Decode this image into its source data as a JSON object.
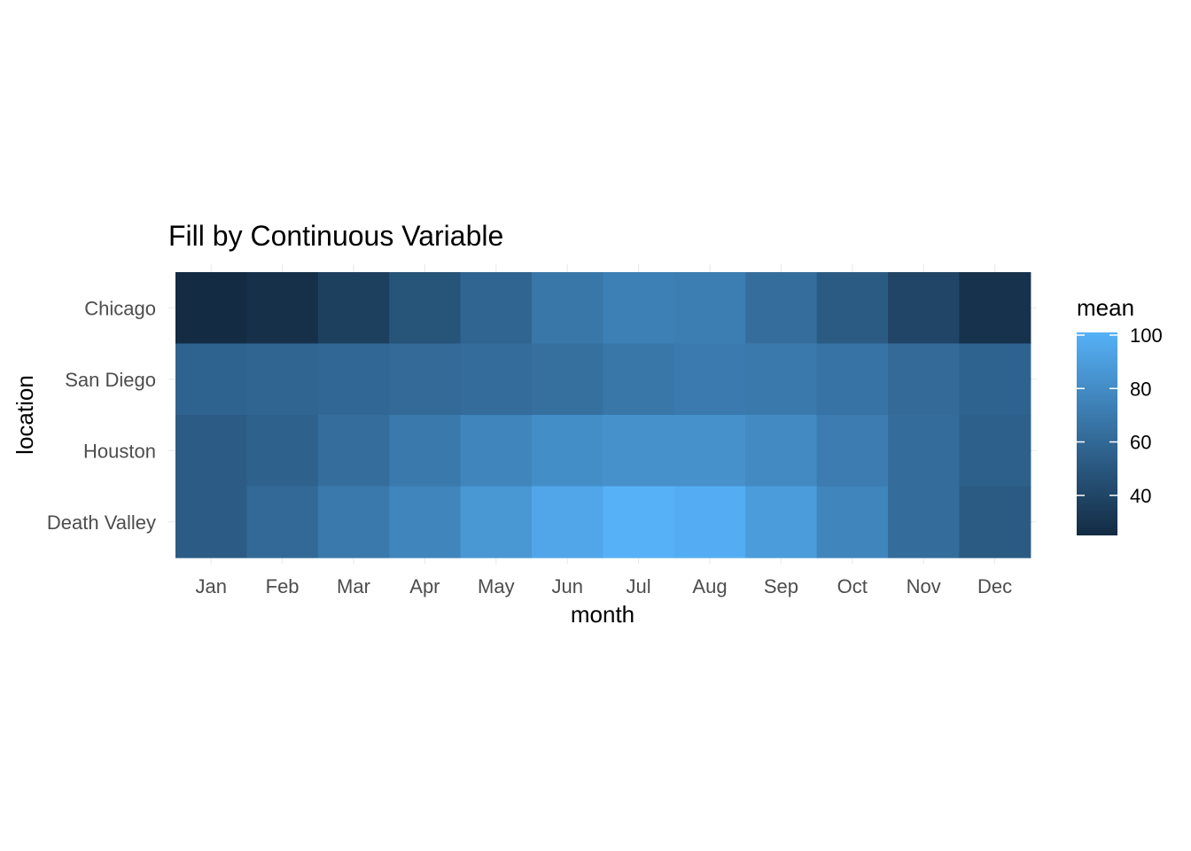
{
  "chart_data": {
    "type": "heatmap",
    "title": "Fill by Continuous Variable",
    "xlabel": "month",
    "ylabel": "location",
    "x_categories": [
      "Jan",
      "Feb",
      "Mar",
      "Apr",
      "May",
      "Jun",
      "Jul",
      "Aug",
      "Sep",
      "Oct",
      "Nov",
      "Dec"
    ],
    "y_categories": [
      "Chicago",
      "San Diego",
      "Houston",
      "Death Valley"
    ],
    "values": [
      [
        25,
        28,
        37,
        48,
        58,
        68,
        73,
        72,
        63,
        52,
        40,
        29
      ],
      [
        57,
        58,
        59,
        61,
        62,
        64,
        68,
        70,
        69,
        66,
        61,
        57
      ],
      [
        53,
        56,
        63,
        69,
        76,
        81,
        83,
        83,
        79,
        71,
        62,
        55
      ],
      [
        53,
        60,
        69,
        76,
        86,
        95,
        101,
        99,
        89,
        76,
        62,
        52
      ]
    ],
    "legend": {
      "title": "mean",
      "ticks": [
        40,
        60,
        80,
        100
      ],
      "range": [
        25,
        101
      ],
      "low_color": "#132B43",
      "high_color": "#56B1F7",
      "position": "right"
    }
  }
}
